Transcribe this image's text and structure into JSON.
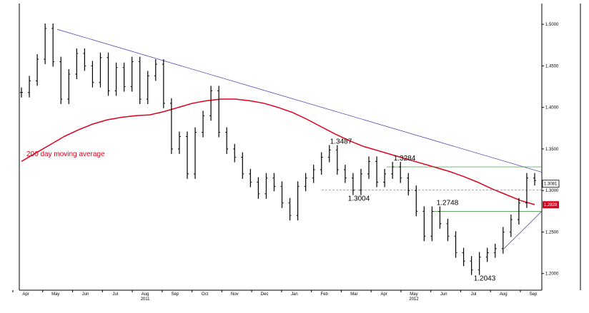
{
  "chart_data": {
    "type": "candlestick",
    "ylim": [
      1.18,
      1.525
    ],
    "y_ticks": [
      "1.5000",
      "1.4500",
      "1.4000",
      "1.3500",
      "1.3000",
      "1.2500",
      "1.2000"
    ],
    "x_ticks": [
      "Apr",
      "May",
      "Jun",
      "Jul",
      "Aug",
      "Sep",
      "Oct",
      "Nov",
      "Dec",
      "Jan",
      "Feb",
      "Mar",
      "Apr",
      "May",
      "Jun",
      "Jul",
      "Aug",
      "Sep"
    ],
    "year_labels": [
      {
        "text": "2011",
        "under": "Aug"
      },
      {
        "text": "2012",
        "under": "May"
      }
    ],
    "closes": [
      1.418,
      1.432,
      1.458,
      1.495,
      1.455,
      1.41,
      1.44,
      1.465,
      1.45,
      1.43,
      1.46,
      1.42,
      1.448,
      1.425,
      1.455,
      1.41,
      1.438,
      1.452,
      1.405,
      1.35,
      1.365,
      1.32,
      1.37,
      1.39,
      1.42,
      1.37,
      1.35,
      1.34,
      1.32,
      1.31,
      1.296,
      1.315,
      1.305,
      1.285,
      1.27,
      1.305,
      1.315,
      1.325,
      1.34,
      1.3487,
      1.325,
      1.315,
      1.3004,
      1.32,
      1.335,
      1.31,
      1.32,
      1.3284,
      1.315,
      1.3,
      1.275,
      1.245,
      1.2748,
      1.26,
      1.245,
      1.225,
      1.215,
      1.2043,
      1.22,
      1.225,
      1.23,
      1.25,
      1.265,
      1.285,
      1.315,
      1.312
    ],
    "ma200": [
      1.335,
      1.345,
      1.355,
      1.365,
      1.373,
      1.38,
      1.385,
      1.388,
      1.39,
      1.391,
      1.395,
      1.4,
      1.405,
      1.408,
      1.41,
      1.41,
      1.408,
      1.405,
      1.4,
      1.394,
      1.386,
      1.377,
      1.368,
      1.36,
      1.353,
      1.348,
      1.343,
      1.338,
      1.333,
      1.328,
      1.323,
      1.317,
      1.31,
      1.302,
      1.295,
      1.288,
      1.283
    ],
    "ma200_label": "200 day moving average",
    "last_price": "1.3081",
    "ma200_last": "1.2828",
    "annotations": [
      {
        "text": "1.3487",
        "value": 1.3487,
        "pos": "above"
      },
      {
        "text": "1.3284",
        "value": 1.3284,
        "pos": "above"
      },
      {
        "text": "1.3004",
        "value": 1.3004,
        "pos": "below"
      },
      {
        "text": "1.2748",
        "value": 1.2748,
        "pos": "above"
      },
      {
        "text": "1.2043",
        "value": 1.2043,
        "pos": "below"
      }
    ],
    "trendline_start": 1.494,
    "trendline_end": 1.322,
    "support_start": 1.23,
    "support_end": 1.275,
    "colors": {
      "price": "#000000",
      "ma200": "#e0001b",
      "trendline": "#3333aa",
      "support": "#2e8b2e"
    }
  }
}
